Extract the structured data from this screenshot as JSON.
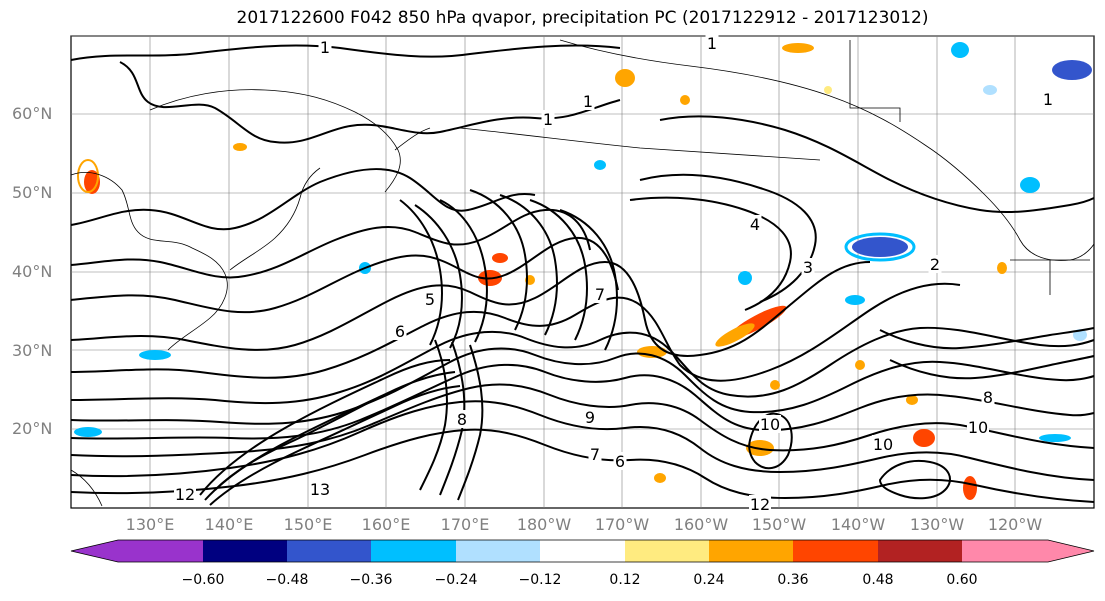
{
  "title": "2017122600 F042 850 hPa qvapor, precipitation PC (2017122912 - 2017123012)",
  "map": {
    "lat_labels": [
      "60°N",
      "50°N",
      "40°N",
      "30°N",
      "20°N"
    ],
    "lon_labels": [
      "130°E",
      "140°E",
      "150°E",
      "160°E",
      "170°E",
      "180°W",
      "170°W",
      "160°W",
      "150°W",
      "140°W",
      "130°W",
      "120°W"
    ],
    "contour_labels": [
      "1",
      "1",
      "1",
      "1",
      "1",
      "2",
      "3",
      "4",
      "5",
      "6",
      "7",
      "8",
      "8",
      "9",
      "10",
      "10",
      "10",
      "12",
      "12",
      "13",
      "7",
      "6"
    ],
    "colors": {
      "contour": "#000000",
      "coastline": "#000000",
      "grid": "#808080"
    }
  },
  "colorbar": {
    "colors": [
      "#9933cc",
      "#000080",
      "#3355cc",
      "#00bfff",
      "#b0e0ff",
      "#ffffff",
      "#ffeb80",
      "#ffa500",
      "#ff4500",
      "#b22222",
      "#ff88aa"
    ],
    "ticks": [
      "−0.60",
      "−0.48",
      "−0.36",
      "−0.24",
      "−0.12",
      "0.12",
      "0.24",
      "0.36",
      "0.48",
      "0.60"
    ]
  }
}
